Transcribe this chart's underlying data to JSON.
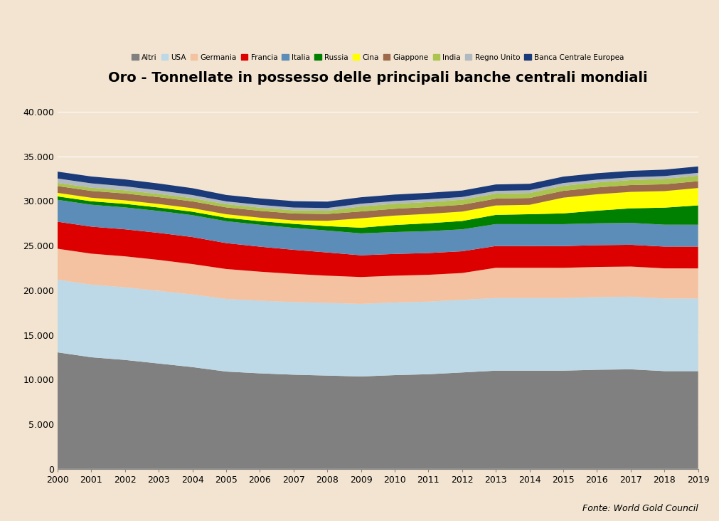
{
  "title": "Oro - Tonnellate in possesso delle principali banche centrali mondiali",
  "subtitle": "Fonte: World Gold Council",
  "background_color": "#f2e4d0",
  "years": [
    2000,
    2001,
    2002,
    2003,
    2004,
    2005,
    2006,
    2007,
    2008,
    2009,
    2010,
    2011,
    2012,
    2013,
    2014,
    2015,
    2016,
    2017,
    2018,
    2019
  ],
  "series": {
    "Altri": {
      "color": "#808080",
      "data": [
        13050,
        12500,
        12200,
        11800,
        11400,
        10900,
        10700,
        10550,
        10450,
        10350,
        10500,
        10600,
        10800,
        11000,
        11000,
        11000,
        11100,
        11150,
        10950,
        10950
      ]
    },
    "USA": {
      "color": "#bdd9e8",
      "data": [
        8133,
        8133,
        8133,
        8133,
        8133,
        8133,
        8133,
        8133,
        8133,
        8133,
        8133,
        8133,
        8133,
        8133,
        8133,
        8133,
        8133,
        8133,
        8133,
        8133
      ]
    },
    "Germania": {
      "color": "#f4c2a1",
      "data": [
        3468,
        3468,
        3468,
        3468,
        3400,
        3350,
        3250,
        3150,
        3050,
        3000,
        3000,
        3000,
        3000,
        3387,
        3383,
        3381,
        3378,
        3374,
        3371,
        3366
      ]
    },
    "Francia": {
      "color": "#dd0000",
      "data": [
        3025,
        3025,
        3025,
        3025,
        3025,
        2900,
        2800,
        2700,
        2600,
        2435,
        2435,
        2435,
        2435,
        2435,
        2435,
        2435,
        2436,
        2436,
        2436,
        2436
      ]
    },
    "Italia": {
      "color": "#5b8db8",
      "data": [
        2452,
        2452,
        2452,
        2452,
        2452,
        2452,
        2452,
        2452,
        2452,
        2452,
        2452,
        2452,
        2452,
        2452,
        2452,
        2452,
        2452,
        2452,
        2452,
        2452
      ]
    },
    "Russia": {
      "color": "#008000",
      "data": [
        384,
        390,
        400,
        390,
        386,
        387,
        402,
        450,
        495,
        637,
        789,
        884,
        938,
        1036,
        1113,
        1208,
        1415,
        1629,
        1909,
        2168
      ]
    },
    "Cina": {
      "color": "#ffff00",
      "data": [
        395,
        395,
        395,
        395,
        395,
        395,
        395,
        395,
        600,
        1054,
        1054,
        1054,
        1054,
        1054,
        1054,
        1762,
        1838,
        1843,
        1852,
        1948
      ]
    },
    "Giappone": {
      "color": "#9e6b4a",
      "data": [
        765,
        765,
        765,
        765,
        765,
        765,
        765,
        765,
        765,
        765,
        765,
        765,
        765,
        765,
        765,
        765,
        765,
        765,
        765,
        765
      ]
    },
    "India": {
      "color": "#aac44e",
      "data": [
        357,
        357,
        357,
        357,
        357,
        357,
        357,
        357,
        357,
        557,
        557,
        557,
        557,
        557,
        557,
        557,
        558,
        558,
        608,
        618
      ]
    },
    "Regno Unito": {
      "color": "#b0b8c0",
      "data": [
        487,
        487,
        450,
        400,
        350,
        315,
        310,
        310,
        310,
        310,
        310,
        310,
        310,
        310,
        310,
        310,
        310,
        310,
        310,
        310
      ]
    },
    "Banca Centrale Europea": {
      "color": "#1a3a7a",
      "data": [
        767,
        767,
        767,
        767,
        767,
        720,
        720,
        720,
        720,
        720,
        720,
        720,
        720,
        720,
        720,
        720,
        720,
        720,
        720,
        720
      ]
    }
  },
  "ylim": [
    0,
    42000
  ],
  "yticks": [
    0,
    5000,
    10000,
    15000,
    20000,
    25000,
    30000,
    35000,
    40000
  ],
  "legend_order": [
    "Altri",
    "USA",
    "Germania",
    "Francia",
    "Italia",
    "Russia",
    "Cina",
    "Giappone",
    "India",
    "Regno Unito",
    "Banca Centrale Europea"
  ]
}
